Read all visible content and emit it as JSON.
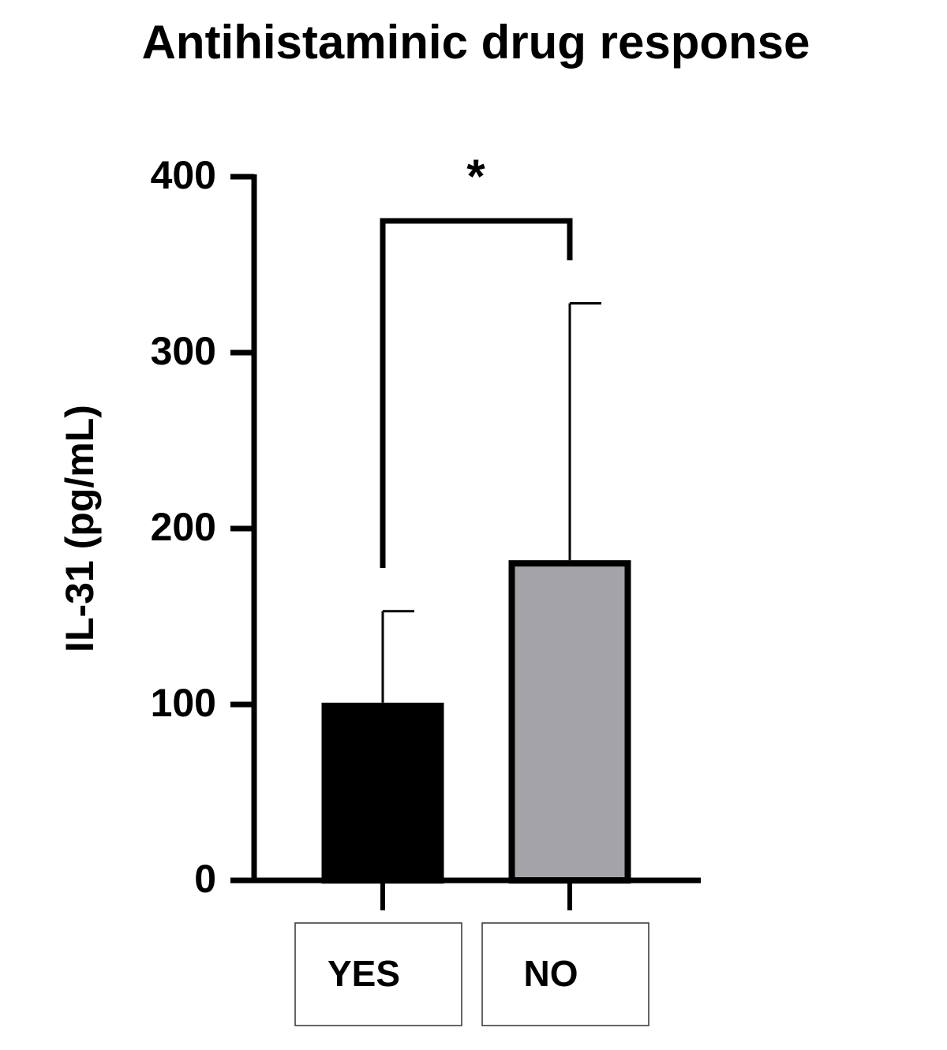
{
  "chart_data": {
    "type": "bar",
    "title": "Antihistaminic drug response",
    "y_label": "IL-31 (pg/mL)",
    "categories": [
      "YES",
      "NO"
    ],
    "values": [
      101,
      182
    ],
    "errors": [
      52,
      146
    ],
    "colors": [
      "#000000",
      "#a3a3a8"
    ],
    "ylim": [
      0,
      400
    ],
    "yticks": [
      0,
      100,
      200,
      300,
      400
    ],
    "annotation": "*"
  }
}
